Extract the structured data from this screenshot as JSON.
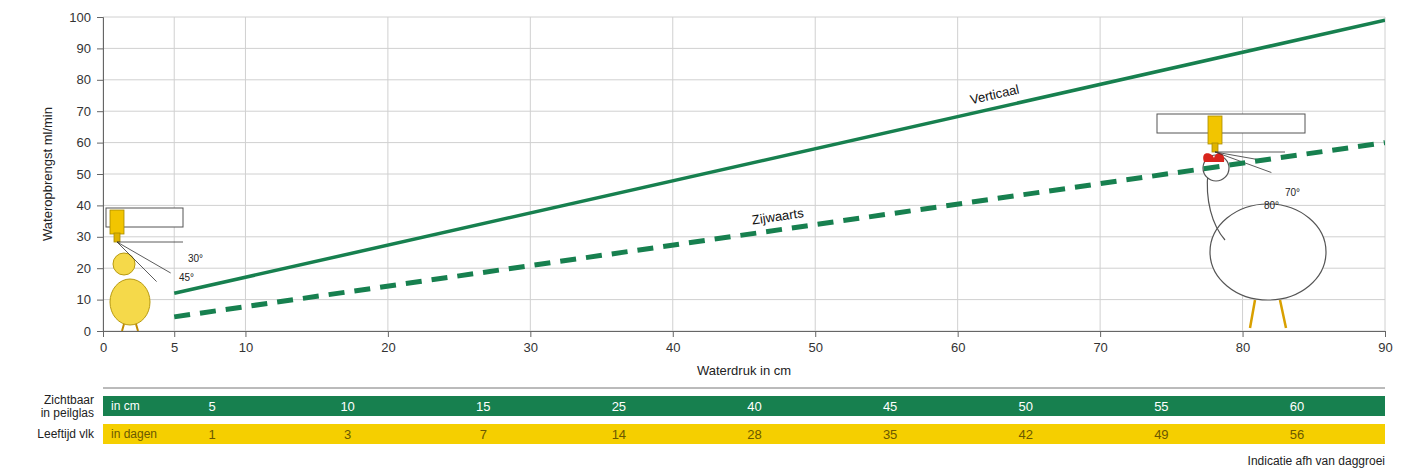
{
  "chart_data": {
    "type": "line",
    "x": [
      5,
      90
    ],
    "series": [
      {
        "name": "Verticaal",
        "color": "#17804f",
        "line_style": "solid",
        "values": [
          12,
          99
        ]
      },
      {
        "name": "Zijwaarts",
        "color": "#17804f",
        "line_style": "dashed",
        "values": [
          4.5,
          60
        ]
      }
    ],
    "xlabel": "Waterdruk in cm",
    "ylabel": "Wateropbrengst ml/min",
    "xlim": [
      0,
      90
    ],
    "ylim": [
      0,
      100
    ],
    "xticks": [
      0,
      5,
      10,
      20,
      30,
      40,
      50,
      60,
      70,
      80,
      90
    ],
    "yticks": [
      0,
      10,
      20,
      30,
      40,
      50,
      60,
      70,
      80,
      90,
      100
    ],
    "grid": true,
    "annotations": [
      "30°",
      "45°",
      "70°",
      "80°"
    ]
  },
  "table": {
    "rows": [
      {
        "label": "Zichtbaar in peilglas",
        "unit": "in cm",
        "values": [
          5,
          10,
          15,
          25,
          40,
          45,
          50,
          55,
          60
        ]
      },
      {
        "label": "Leeftijd vlk",
        "unit": "in dagen",
        "values": [
          1,
          3,
          7,
          14,
          28,
          35,
          42,
          49,
          56
        ]
      }
    ],
    "note": "Indicatie afh van daggroei"
  }
}
